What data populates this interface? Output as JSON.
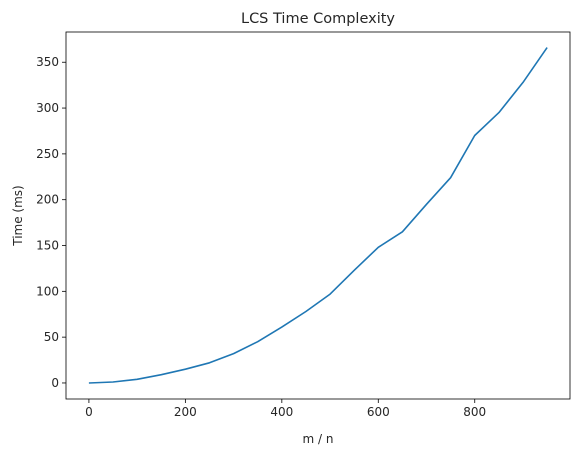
{
  "chart_data": {
    "type": "line",
    "title": "LCS Time Complexity",
    "xlabel": "m / n",
    "ylabel": "Time (ms)",
    "xlim": [
      -47.5,
      997.5
    ],
    "ylim": [
      -17.5,
      383
    ],
    "xticks": [
      0,
      200,
      400,
      600,
      800
    ],
    "yticks": [
      0,
      50,
      100,
      150,
      200,
      250,
      300,
      350
    ],
    "grid": false,
    "series": [
      {
        "color": "#1f77b4",
        "x": [
          0,
          50,
          100,
          150,
          200,
          250,
          300,
          350,
          400,
          450,
          500,
          550,
          600,
          650,
          700,
          750,
          800,
          850,
          900,
          950
        ],
        "y": [
          0,
          1,
          4,
          9,
          15,
          22,
          32,
          45,
          61,
          78,
          97,
          123,
          148,
          165,
          195,
          224,
          270,
          295,
          328,
          366
        ]
      }
    ]
  }
}
